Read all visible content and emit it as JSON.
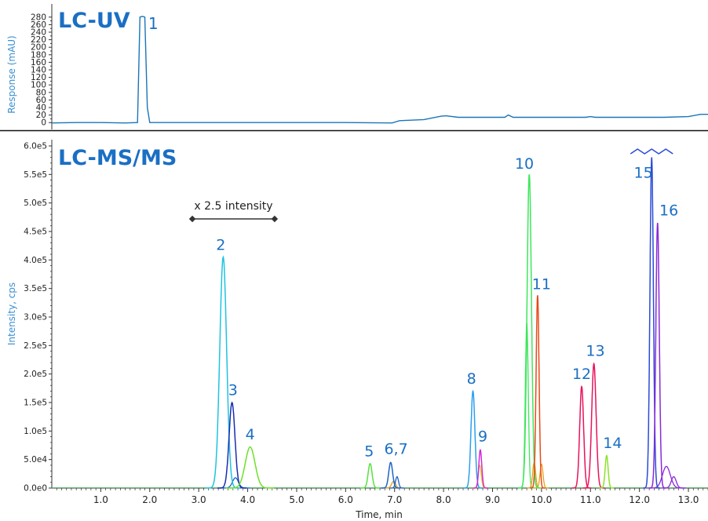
{
  "chart_data": [
    {
      "type": "line",
      "title": "LC-UV",
      "ylabel": "Response (mAU)",
      "xlim": [
        0,
        13.4
      ],
      "ylim": [
        -12,
        290
      ],
      "yticks": [
        "0",
        "20",
        "40",
        "60",
        "80",
        "100",
        "120",
        "140",
        "160",
        "180",
        "200",
        "220",
        "240",
        "260",
        "280"
      ],
      "color": "#1a75b9",
      "series": [
        {
          "x": [
            0.0,
            0.5,
            1.0,
            1.5,
            1.75,
            1.8,
            1.85,
            1.9,
            1.95,
            2.0,
            2.5,
            3.0,
            4.0,
            5.0,
            6.0,
            6.95,
            7.1,
            7.6,
            7.95,
            8.05,
            8.3,
            9.0,
            9.25,
            9.32,
            9.42,
            10.0,
            10.9,
            11.0,
            11.1,
            11.6,
            12.5,
            13.0,
            13.25,
            13.4
          ],
          "y": [
            -1,
            0,
            0,
            -1,
            0,
            280,
            282,
            280,
            40,
            0,
            0,
            0,
            0,
            0,
            0,
            -1,
            5,
            8,
            17,
            18,
            14,
            14,
            14,
            20,
            14,
            14,
            14,
            16,
            14,
            14,
            14,
            16,
            22,
            22
          ]
        }
      ],
      "annotations": [
        {
          "label": "1",
          "x": 1.97,
          "y": 255
        }
      ]
    },
    {
      "type": "line",
      "title": "LC-MS/MS",
      "xlabel": "Time, min",
      "ylabel": "Intensity, cps",
      "xlim": [
        0,
        13.4
      ],
      "ylim": [
        0,
        600000
      ],
      "xticks": [
        "1.0",
        "2.0",
        "3.0",
        "4.0",
        "5.0",
        "6.0",
        "7.0",
        "8.0",
        "9.0",
        "10.0",
        "11.0",
        "12.0",
        "13.0"
      ],
      "yticks": [
        "0.0e0",
        "5.0e4",
        "1.0e5",
        "1.5e5",
        "2.0e5",
        "2.5e5",
        "3.0e5",
        "3.5e5",
        "4.0e5",
        "4.5e5",
        "5.0e5",
        "5.5e5",
        "6.0e5"
      ],
      "bracket": {
        "label": "x 2.5 intensity",
        "x_start": 2.87,
        "x_end": 4.55
      },
      "peaks": [
        {
          "label": "2",
          "rt": 3.5,
          "height": 405000,
          "width": 0.07,
          "color": "#1fc3e0",
          "label_x": 3.45,
          "label_y": 418000
        },
        {
          "label": "3",
          "rt": 3.68,
          "height": 150000,
          "width": 0.06,
          "color": "#1a2db0",
          "label_x": 3.7,
          "label_y": 163000
        },
        {
          "label": "4",
          "rt": 4.05,
          "height": 72000,
          "width": 0.1,
          "color": "#6ee02a",
          "label_x": 4.05,
          "label_y": 85000
        },
        {
          "label": "5",
          "rt": 6.5,
          "height": 43000,
          "width": 0.04,
          "color": "#59e040",
          "label_x": 6.48,
          "label_y": 56000
        },
        {
          "label": "6,7",
          "rt": 6.92,
          "height": 45000,
          "width": 0.04,
          "color": "#1f63c6",
          "label_x": 7.03,
          "label_y": 60000
        },
        {
          "label": "8",
          "rt": 8.6,
          "height": 170000,
          "width": 0.04,
          "color": "#2aa0ee",
          "label_x": 8.57,
          "label_y": 183000
        },
        {
          "label": "9",
          "rt": 8.75,
          "height": 67000,
          "width": 0.03,
          "color": "#d428d6",
          "label_x": 8.8,
          "label_y": 82000
        },
        {
          "label": "10",
          "rt": 9.75,
          "height": 550000,
          "width": 0.045,
          "color": "#3ee65c",
          "label_x": 9.65,
          "label_y": 560000
        },
        {
          "label": "11",
          "rt": 9.92,
          "height": 338000,
          "width": 0.03,
          "color": "#e84a1a",
          "label_x": 10.0,
          "label_y": 349000
        },
        {
          "label": "12",
          "rt": 10.82,
          "height": 178000,
          "width": 0.04,
          "color": "#e8145a",
          "label_x": 10.82,
          "label_y": 191000
        },
        {
          "label": "13",
          "rt": 11.07,
          "height": 218000,
          "width": 0.045,
          "color": "#e8145a",
          "label_x": 11.1,
          "label_y": 232000
        },
        {
          "label": "14",
          "rt": 11.33,
          "height": 57000,
          "width": 0.03,
          "color": "#8de22a",
          "label_x": 11.45,
          "label_y": 70000
        },
        {
          "label": "15",
          "rt": 12.25,
          "height": 580000,
          "width": 0.035,
          "color": "#2a4ad8",
          "label_x": 12.08,
          "label_y": 544000
        },
        {
          "label": "16",
          "rt": 12.37,
          "height": 465000,
          "width": 0.035,
          "color": "#8a2ad8",
          "label_x": 12.6,
          "label_y": 478000
        }
      ],
      "minor_peaks": [
        {
          "rt": 3.75,
          "height": 18000,
          "width": 0.06,
          "color": "#1f63c6"
        },
        {
          "rt": 9.7,
          "height": 290000,
          "width": 0.03,
          "color": "#3ee65c"
        },
        {
          "rt": 9.85,
          "height": 45000,
          "width": 0.03,
          "color": "#e8a01a"
        },
        {
          "rt": 10.0,
          "height": 42000,
          "width": 0.03,
          "color": "#e8a01a"
        },
        {
          "rt": 6.98,
          "height": 12000,
          "width": 0.04,
          "color": "#e8a01a"
        },
        {
          "rt": 7.05,
          "height": 20000,
          "width": 0.03,
          "color": "#1f63c6"
        },
        {
          "rt": 8.74,
          "height": 40000,
          "width": 0.03,
          "color": "#e8c01a"
        },
        {
          "rt": 12.55,
          "height": 38000,
          "width": 0.08,
          "color": "#8a2ad8"
        },
        {
          "rt": 12.7,
          "height": 20000,
          "width": 0.05,
          "color": "#8a2ad8"
        }
      ]
    }
  ]
}
